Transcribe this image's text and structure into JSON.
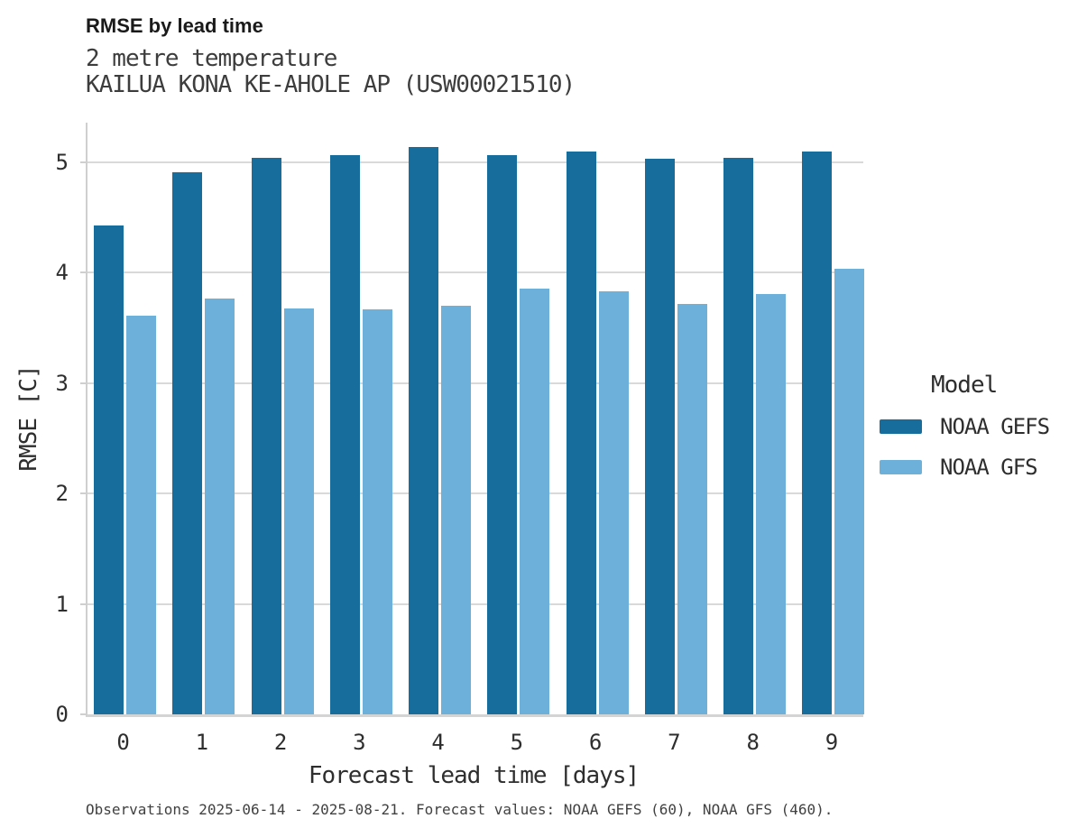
{
  "header": {
    "title": "RMSE by lead time",
    "subtitle1": "2 metre temperature",
    "subtitle2": "KAILUA KONA KE-AHOLE AP (USW00021510)"
  },
  "axes": {
    "y_label": "RMSE [C]",
    "x_label": "Forecast lead time [days]",
    "y_ticks": [
      "0",
      "1",
      "2",
      "3",
      "4",
      "5"
    ],
    "x_ticks": [
      "0",
      "1",
      "2",
      "3",
      "4",
      "5",
      "6",
      "7",
      "8",
      "9"
    ]
  },
  "legend": {
    "title": "Model",
    "entries": [
      {
        "label": "NOAA GEFS",
        "color": "#176d9c"
      },
      {
        "label": "NOAA GFS",
        "color": "#6db0d9"
      }
    ]
  },
  "footnote": "Observations 2025-06-14 - 2025-08-21. Forecast values: NOAA GEFS (60), NOAA GFS (460).",
  "colors": {
    "gefs_bar": "#176d9c",
    "gfs_bar": "#6db0d9",
    "gridline": "#d9d9d9",
    "axis_spine": "#cfcfcf",
    "title_text": "#1a1a1a",
    "body_text": "#2e2e2e"
  },
  "chart_data": {
    "type": "bar",
    "title": "RMSE by lead time",
    "subtitle": [
      "2 metre temperature",
      "KAILUA KONA KE-AHOLE AP (USW00021510)"
    ],
    "categories": [
      0,
      1,
      2,
      3,
      4,
      5,
      6,
      7,
      8,
      9
    ],
    "series": [
      {
        "name": "NOAA GEFS",
        "color": "#176d9c",
        "values": [
          4.43,
          4.91,
          5.04,
          5.07,
          5.14,
          5.07,
          5.1,
          5.03,
          5.04,
          5.1
        ]
      },
      {
        "name": "NOAA GFS",
        "color": "#6db0d9",
        "values": [
          3.61,
          3.77,
          3.68,
          3.67,
          3.7,
          3.86,
          3.83,
          3.72,
          3.81,
          4.04
        ]
      }
    ],
    "xlabel": "Forecast lead time [days]",
    "ylabel": "RMSE [C]",
    "ylim": [
      0,
      5.36
    ],
    "y_gridlines": [
      1,
      2,
      3,
      4,
      5
    ],
    "grid": "horizontal",
    "legend_title": "Model",
    "legend_position": "right",
    "caption": "Observations 2025-06-14 - 2025-08-21. Forecast values: NOAA GEFS (60), NOAA GFS (460)."
  }
}
